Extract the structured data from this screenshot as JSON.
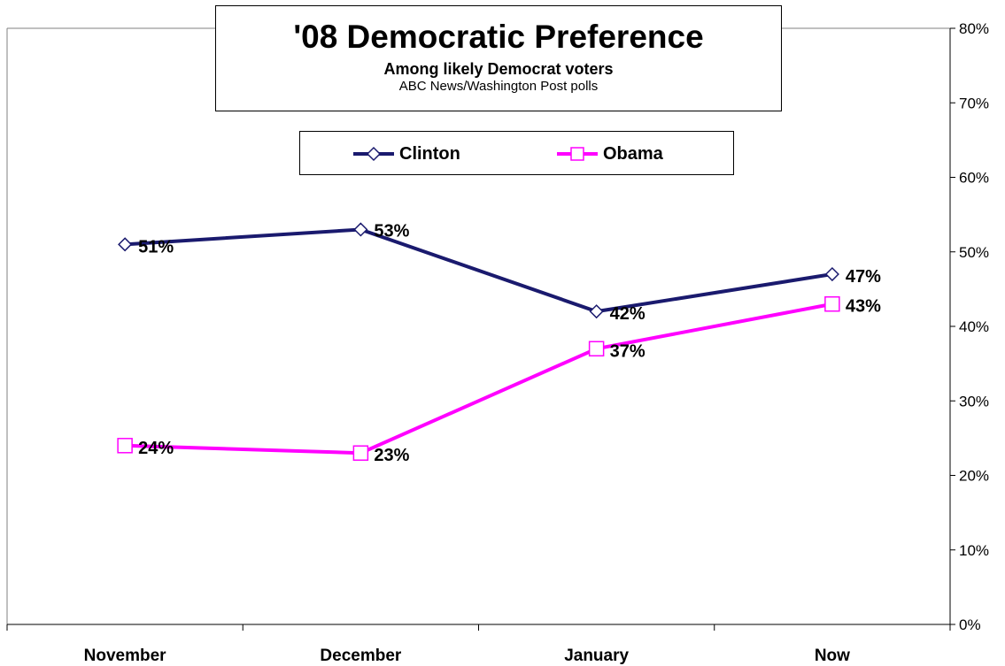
{
  "chart_data": {
    "type": "line",
    "title": "'08 Democratic Preference",
    "subtitle": "Among likely Democrat voters",
    "source": "ABC News/Washington Post polls",
    "categories": [
      "November",
      "December",
      "January",
      "Now"
    ],
    "series": [
      {
        "name": "Clinton",
        "values": [
          51,
          53,
          42,
          47
        ],
        "labels": [
          "51%",
          "53%",
          "42%",
          "47%"
        ],
        "color": "#1a1a6e",
        "marker": "diamond"
      },
      {
        "name": "Obama",
        "values": [
          24,
          23,
          37,
          43
        ],
        "labels": [
          "24%",
          "23%",
          "37%",
          "43%"
        ],
        "color": "#ff00ff",
        "marker": "square"
      }
    ],
    "y_ticks": [
      "0%",
      "10%",
      "20%",
      "30%",
      "40%",
      "50%",
      "60%",
      "70%",
      "80%"
    ],
    "ylim": [
      0,
      80
    ],
    "y_axis_side": "right",
    "grid": false,
    "legend_position": "top-center"
  }
}
